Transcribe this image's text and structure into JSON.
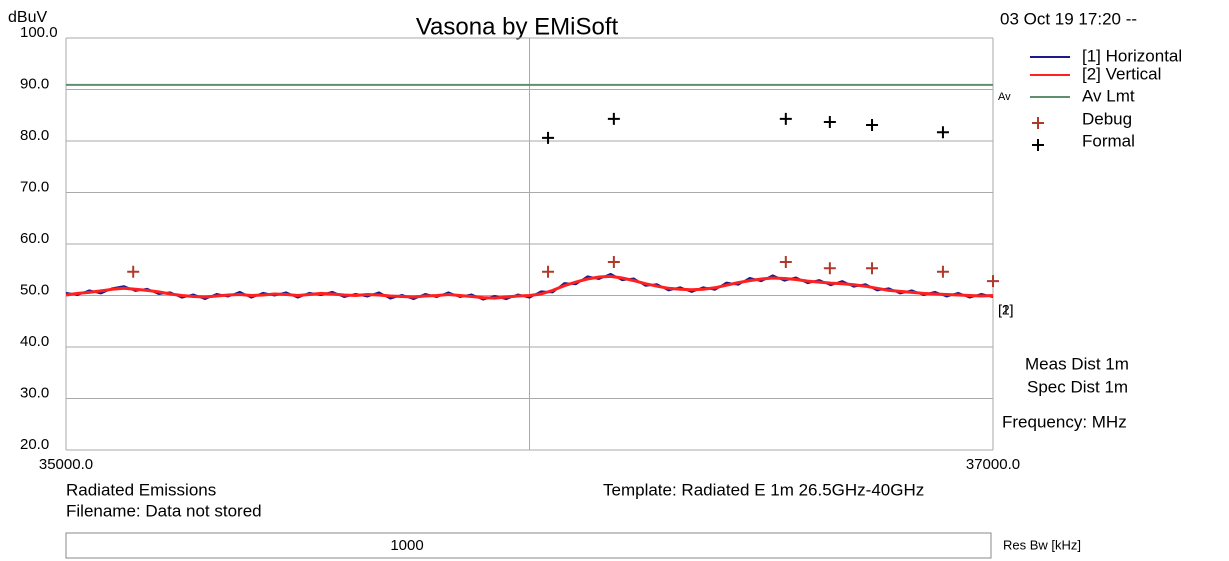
{
  "chart_data": {
    "type": "line",
    "title": "Vasona by EMiSoft",
    "y_unit": "dBuV",
    "timestamp": "03 Oct 19 17:20 --",
    "xlim": [
      35000,
      37000
    ],
    "xticks": [
      {
        "value": 35000,
        "label": "35000.0"
      },
      {
        "value": 36000,
        "label": null
      },
      {
        "value": 37000,
        "label": "37000.0"
      }
    ],
    "ylim": [
      20,
      100
    ],
    "yticks": [
      {
        "value": 20,
        "label": "20.0"
      },
      {
        "value": 30,
        "label": "30.0"
      },
      {
        "value": 40,
        "label": "40.0"
      },
      {
        "value": 50,
        "label": "50.0"
      },
      {
        "value": 60,
        "label": "60.0"
      },
      {
        "value": 70,
        "label": "70.0"
      },
      {
        "value": 80,
        "label": "80.0"
      },
      {
        "value": 90,
        "label": "90.0"
      },
      {
        "value": 100,
        "label": "100.0"
      }
    ],
    "grid": true,
    "x": [
      35000,
      35025,
      35050,
      35075,
      35100,
      35125,
      35150,
      35175,
      35200,
      35225,
      35250,
      35275,
      35300,
      35325,
      35350,
      35375,
      35400,
      35425,
      35450,
      35475,
      35500,
      35525,
      35550,
      35575,
      35600,
      35625,
      35650,
      35675,
      35700,
      35725,
      35750,
      35775,
      35800,
      35825,
      35850,
      35875,
      35900,
      35925,
      35950,
      35975,
      36000,
      36025,
      36050,
      36075,
      36100,
      36125,
      36150,
      36175,
      36200,
      36225,
      36250,
      36275,
      36300,
      36325,
      36350,
      36375,
      36400,
      36425,
      36450,
      36475,
      36500,
      36525,
      36550,
      36575,
      36600,
      36625,
      36650,
      36675,
      36700,
      36725,
      36750,
      36775,
      36800,
      36825,
      36850,
      36875,
      36900,
      36925,
      36950,
      36975,
      37000
    ],
    "series": [
      {
        "name": "[1] Horizontal",
        "color": "#1a1a8c",
        "values": [
          50.5,
          50.1,
          51.0,
          50.4,
          51.4,
          51.8,
          50.9,
          51.3,
          50.3,
          50.6,
          49.6,
          50.2,
          49.3,
          50.3,
          49.8,
          50.7,
          49.6,
          50.5,
          50.0,
          50.6,
          49.6,
          50.5,
          50.1,
          50.7,
          49.7,
          50.3,
          49.8,
          50.6,
          49.4,
          50.1,
          49.3,
          50.3,
          49.7,
          50.6,
          49.7,
          50.2,
          49.2,
          49.9,
          49.3,
          50.2,
          49.6,
          50.8,
          50.6,
          52.4,
          52.2,
          53.7,
          53.2,
          54.2,
          53.0,
          53.3,
          51.9,
          52.2,
          51.0,
          51.6,
          50.7,
          51.6,
          51.1,
          52.5,
          52.1,
          53.4,
          52.8,
          53.9,
          52.9,
          53.5,
          52.4,
          53.0,
          52.0,
          52.8,
          51.7,
          52.2,
          51.0,
          51.4,
          50.4,
          51.0,
          50.1,
          50.7,
          49.8,
          50.5,
          49.6,
          50.3,
          49.7
        ]
      },
      {
        "name": "[2] Vertical",
        "color": "#ff2020",
        "values": [
          50.1,
          50.4,
          50.6,
          50.9,
          51.2,
          51.4,
          51.2,
          51.0,
          50.7,
          50.3,
          50.0,
          49.8,
          49.7,
          49.9,
          50.1,
          50.2,
          50.0,
          50.1,
          50.3,
          50.2,
          50.0,
          50.2,
          50.4,
          50.3,
          50.1,
          50.0,
          50.2,
          50.1,
          49.9,
          49.8,
          49.7,
          49.9,
          50.0,
          50.2,
          50.0,
          49.8,
          49.6,
          49.5,
          49.7,
          49.9,
          50.0,
          50.3,
          51.0,
          51.9,
          52.6,
          53.2,
          53.6,
          53.7,
          53.4,
          52.9,
          52.3,
          51.8,
          51.4,
          51.2,
          51.1,
          51.2,
          51.5,
          52.0,
          52.5,
          52.9,
          53.2,
          53.4,
          53.3,
          53.1,
          52.8,
          52.6,
          52.4,
          52.3,
          52.1,
          51.8,
          51.4,
          51.0,
          50.8,
          50.6,
          50.4,
          50.3,
          50.2,
          50.1,
          50.0,
          49.9,
          50.0
        ]
      }
    ],
    "trace_labels": [
      "[1]",
      "[2]"
    ],
    "limit": {
      "name": "Av Lmt",
      "short_label": "Av",
      "value": 90.9,
      "color": "#5f8f6f"
    },
    "markers": [
      {
        "name": "Debug",
        "color": "#b03a2a",
        "x": [
          35145,
          36040,
          36182,
          36553,
          36648,
          36739,
          36892,
          37000
        ],
        "values": [
          54.6,
          54.6,
          56.5,
          56.5,
          55.3,
          55.3,
          54.6,
          52.8
        ]
      },
      {
        "name": "Formal",
        "color": "#000000",
        "x": [
          36040,
          36182,
          36553,
          36648,
          36739,
          36892
        ],
        "values": [
          80.6,
          84.3,
          84.3,
          83.7,
          83.1,
          81.7
        ]
      }
    ],
    "notes": [
      "Meas Dist 1m",
      "Spec Dist 1m",
      "Frequency: MHz"
    ]
  },
  "info": {
    "test": "Radiated Emissions",
    "filename": "Filename: Data not stored",
    "template": "Template: Radiated E 1m 26.5GHz-40GHz"
  },
  "res_bw": {
    "value": 1000,
    "label": "Res Bw [kHz]"
  }
}
